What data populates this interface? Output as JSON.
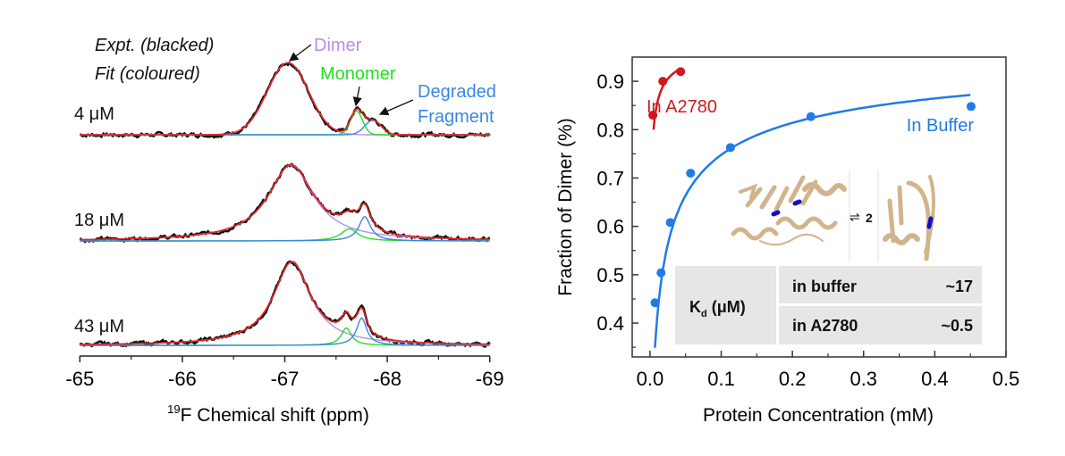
{
  "chart_data": [
    {
      "type": "line",
      "panel": "left",
      "xlabel_sup": "19",
      "xlabel": "F Chemical shift (ppm)",
      "xlim": [
        -65,
        -69
      ],
      "x_reversed": true,
      "xticks": [
        "-65",
        "-66",
        "-67",
        "-68",
        "-69"
      ],
      "legend_notes": [
        "Expt. (blacked)",
        "Fit (coloured)"
      ],
      "annotations": {
        "dimer": "Dimer",
        "monomer": "Monomer",
        "degraded_1": "Degraded",
        "degraded_2": "Fragment"
      },
      "colors": {
        "expt": "#111111",
        "fit": "#e8231f",
        "dimer": "#b98ee6",
        "monomer": "#22e022",
        "degraded": "#3a86e6"
      },
      "spectra": [
        {
          "label": "4 μM",
          "components": [
            {
              "name": "dimer",
              "ppm": -67.03,
              "height": 0.95,
              "width": 0.2,
              "shape": "gaussian"
            },
            {
              "name": "monomer",
              "ppm": -67.7,
              "height": 0.31,
              "width": 0.06,
              "shape": "gaussian"
            },
            {
              "name": "degraded",
              "ppm": -67.86,
              "height": 0.19,
              "width": 0.08,
              "shape": "gaussian"
            }
          ]
        },
        {
          "label": "18 μM",
          "components": [
            {
              "name": "dimer",
              "ppm": -67.06,
              "height": 1.0,
              "width": 0.27,
              "shape": "lorentzian"
            },
            {
              "name": "monomer",
              "ppm": -67.63,
              "height": 0.16,
              "width": 0.1,
              "shape": "lorentzian"
            },
            {
              "name": "degraded",
              "ppm": -67.78,
              "height": 0.32,
              "width": 0.07,
              "shape": "lorentzian"
            }
          ]
        },
        {
          "label": "43 μM",
          "components": [
            {
              "name": "dimer",
              "ppm": -67.07,
              "height": 1.1,
              "width": 0.22,
              "shape": "lorentzian"
            },
            {
              "name": "monomer",
              "ppm": -67.6,
              "height": 0.23,
              "width": 0.06,
              "shape": "lorentzian"
            },
            {
              "name": "degraded",
              "ppm": -67.75,
              "height": 0.36,
              "width": 0.06,
              "shape": "lorentzian"
            }
          ]
        }
      ]
    },
    {
      "type": "scatter",
      "panel": "right",
      "xlabel": "Protein Concentration (mM)",
      "ylabel": "Fraction of Dimer (%)",
      "xlim": [
        -0.025,
        0.5
      ],
      "ylim": [
        0.33,
        0.95
      ],
      "xticks": [
        "0.0",
        "0.1",
        "0.2",
        "0.3",
        "0.4",
        "0.5"
      ],
      "yticks": [
        "0.4",
        "0.5",
        "0.6",
        "0.7",
        "0.8",
        "0.9"
      ],
      "series": [
        {
          "name": "In A2780",
          "color": "#d0191e",
          "kd_mM": 0.0005,
          "x": [
            0.004,
            0.018,
            0.043
          ],
          "y": [
            0.83,
            0.9,
            0.92
          ],
          "fit_range": [
            0.005,
            0.043
          ]
        },
        {
          "name": "In Buffer",
          "color": "#1f7be6",
          "kd_mM": 0.017,
          "x": [
            0.007,
            0.0155,
            0.0285,
            0.057,
            0.113,
            0.226,
            0.451
          ],
          "y": [
            0.442,
            0.504,
            0.608,
            0.71,
            0.763,
            0.827,
            0.848
          ],
          "fit_range": [
            0.007,
            0.45
          ]
        }
      ],
      "inset": {
        "equilibrium_symbol": "⇌",
        "stoichiometry": "2"
      },
      "table": {
        "header": "K",
        "header_sub": "d",
        "header_unit": " (μM)",
        "rows": [
          {
            "condition": "in buffer",
            "value": "~17"
          },
          {
            "condition": "in A2780",
            "value": "~0.5"
          }
        ]
      }
    }
  ]
}
